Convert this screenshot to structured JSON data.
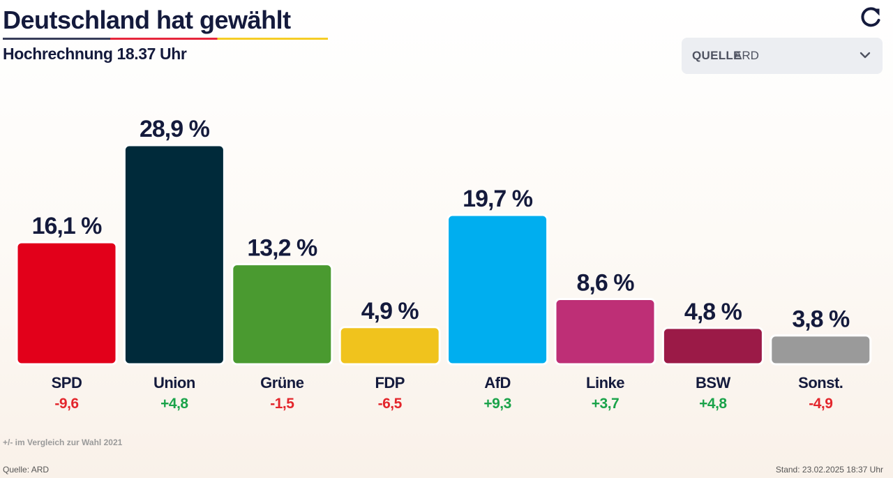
{
  "header": {
    "title": "Deutschland hat gewählt",
    "subtitle": "Hochrechnung 18.37 Uhr"
  },
  "source_select": {
    "label": "QUELLE",
    "value": "ARD"
  },
  "icons": {
    "refresh": "refresh-icon",
    "dropdown": "chevron-down-icon"
  },
  "chart_data": {
    "type": "bar",
    "title": "Deutschland hat gewählt",
    "subtitle": "Hochrechnung 18.37 Uhr",
    "unit": "%",
    "categories": [
      "SPD",
      "Union",
      "Grüne",
      "FDP",
      "AfD",
      "Linke",
      "BSW",
      "Sonst."
    ],
    "values": [
      16.1,
      28.9,
      13.2,
      4.9,
      19.7,
      8.6,
      4.8,
      3.8
    ],
    "value_labels": [
      "16,1 %",
      "28,9 %",
      "13,2 %",
      "4,9 %",
      "19,7 %",
      "8,6 %",
      "4,8 %",
      "3,8 %"
    ],
    "changes": [
      -9.6,
      4.8,
      -1.5,
      -6.5,
      9.3,
      3.7,
      4.8,
      -4.9
    ],
    "change_labels": [
      "-9,6",
      "+4,8",
      "-1,5",
      "-6,5",
      "+9,3",
      "+3,7",
      "+4,8",
      "-4,9"
    ],
    "colors": [
      "#e2001a",
      "#002a3a",
      "#4a9a30",
      "#f0c31d",
      "#00aeef",
      "#be2f76",
      "#9b1a47",
      "#9a9a9a"
    ],
    "change_colors": {
      "positive": "#1aa34a",
      "negative": "#e3262c"
    },
    "xlabel": "",
    "ylabel": "",
    "ylim": [
      0,
      28.9
    ],
    "grid": false
  },
  "footer": {
    "note": "+/- im Vergleich zur Wahl 2021",
    "source": "Quelle: ARD",
    "stand": "Stand: 23.02.2025 18:37 Uhr"
  }
}
